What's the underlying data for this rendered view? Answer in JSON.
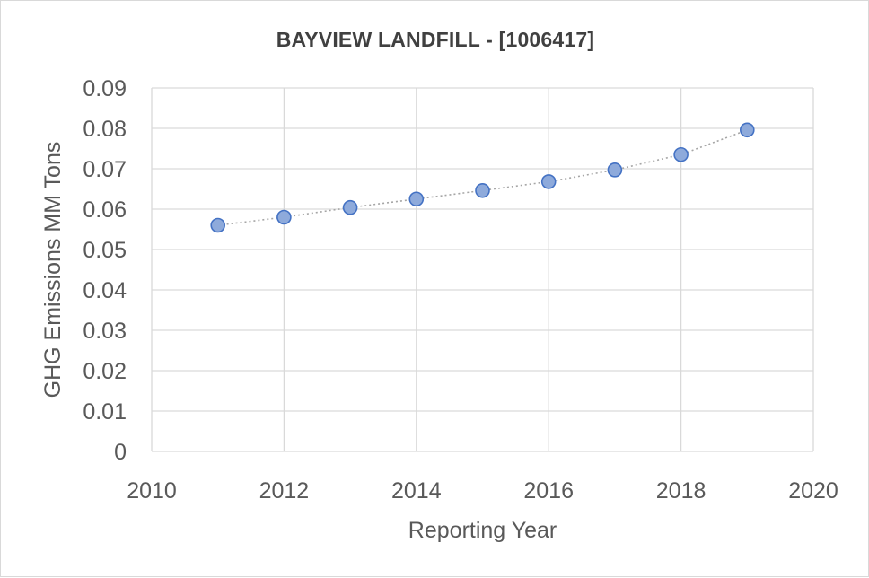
{
  "chart_data": {
    "type": "scatter",
    "title": "BAYVIEW LANDFILL - [1006417]",
    "xlabel": "Reporting Year",
    "ylabel": "GHG Emissions MM Tons",
    "xlim": [
      2010,
      2020
    ],
    "ylim": [
      0,
      0.09
    ],
    "x_ticks": [
      "2010",
      "2012",
      "2014",
      "2016",
      "2018",
      "2020"
    ],
    "y_ticks": [
      "0",
      "0.01",
      "0.02",
      "0.03",
      "0.04",
      "0.05",
      "0.06",
      "0.07",
      "0.08",
      "0.09"
    ],
    "grid": true,
    "trendline": "dotted connector",
    "marker_color": "#8eaadb",
    "marker_edge": "#4472c4",
    "series": [
      {
        "x": [
          2011,
          2012,
          2013,
          2014,
          2015,
          2016,
          2017,
          2018,
          2019
        ],
        "y": [
          0.056,
          0.058,
          0.0604,
          0.0625,
          0.0646,
          0.0668,
          0.0697,
          0.0735,
          0.0796
        ]
      }
    ]
  }
}
